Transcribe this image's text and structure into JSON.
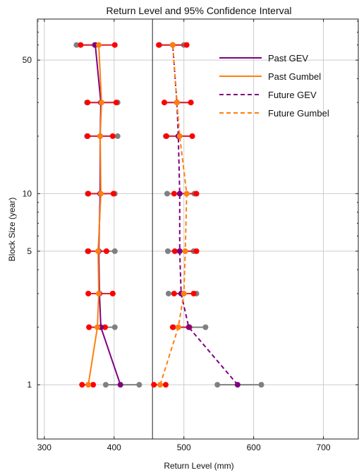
{
  "colors": {
    "past_gev": "#800080",
    "past_gumbel": "#ff7f0e",
    "future_gev": "#800080",
    "future_gumbel": "#ff7f0e",
    "ci_gev": "#808080",
    "ci_gumbel": "#ff0000",
    "ci_gumbel_line": "#e0202a",
    "grid": "#cccccc"
  },
  "chart_data": {
    "type": "line",
    "title": "Return Level and 95% Confidence Interval",
    "xlabel": "Return Level (mm)",
    "ylabel": "Block Size (year)",
    "xlim": [
      290,
      750
    ],
    "ylim": [
      0.52,
      82
    ],
    "yscale": "log",
    "x_ticks": [
      300,
      400,
      500,
      600,
      700
    ],
    "y_ticks": [
      1,
      5,
      10,
      50
    ],
    "grid": true,
    "legend_position": "top-right",
    "vertical_line": 455,
    "block_sizes": [
      1,
      2,
      3,
      5,
      10,
      20,
      30,
      60
    ],
    "series": [
      {
        "name": "Past GEV",
        "style": "solid",
        "x": [
          409,
          381,
          379,
          378,
          380,
          380,
          381,
          373
        ]
      },
      {
        "name": "Past Gumbel",
        "style": "solid",
        "x": [
          363,
          376,
          378,
          377,
          381,
          380,
          382,
          378
        ]
      },
      {
        "name": "Future GEV",
        "style": "dashed",
        "x": [
          577,
          507,
          496,
          494,
          494,
          492,
          490,
          484
        ]
      },
      {
        "name": "Future Gumbel",
        "style": "dashed",
        "x": [
          466,
          492,
          500,
          502,
          504,
          494,
          490,
          484
        ]
      }
    ],
    "ci_gev": [
      {
        "series": "Past GEV",
        "low": [
          388,
          364,
          363,
          362,
          362,
          361,
          361,
          346
        ],
        "high": [
          436,
          401,
          398,
          401,
          401,
          405,
          405,
          372
        ]
      },
      {
        "series": "Future GEV",
        "low": [
          548,
          485,
          478,
          477,
          476,
          474,
          472,
          465
        ],
        "high": [
          611,
          531,
          518,
          514,
          515,
          512,
          510,
          500
        ]
      }
    ],
    "ci_gumbel": [
      {
        "series": "Past Gumbel",
        "low": [
          354,
          364,
          363,
          363,
          363,
          362,
          362,
          352
        ],
        "high": [
          370,
          387,
          398,
          389,
          399,
          398,
          403,
          401
        ]
      },
      {
        "series": "Future Gumbel",
        "low": [
          457,
          484,
          486,
          487,
          486,
          475,
          472,
          464
        ],
        "high": [
          474,
          508,
          514,
          518,
          518,
          512,
          510,
          504
        ]
      }
    ]
  }
}
